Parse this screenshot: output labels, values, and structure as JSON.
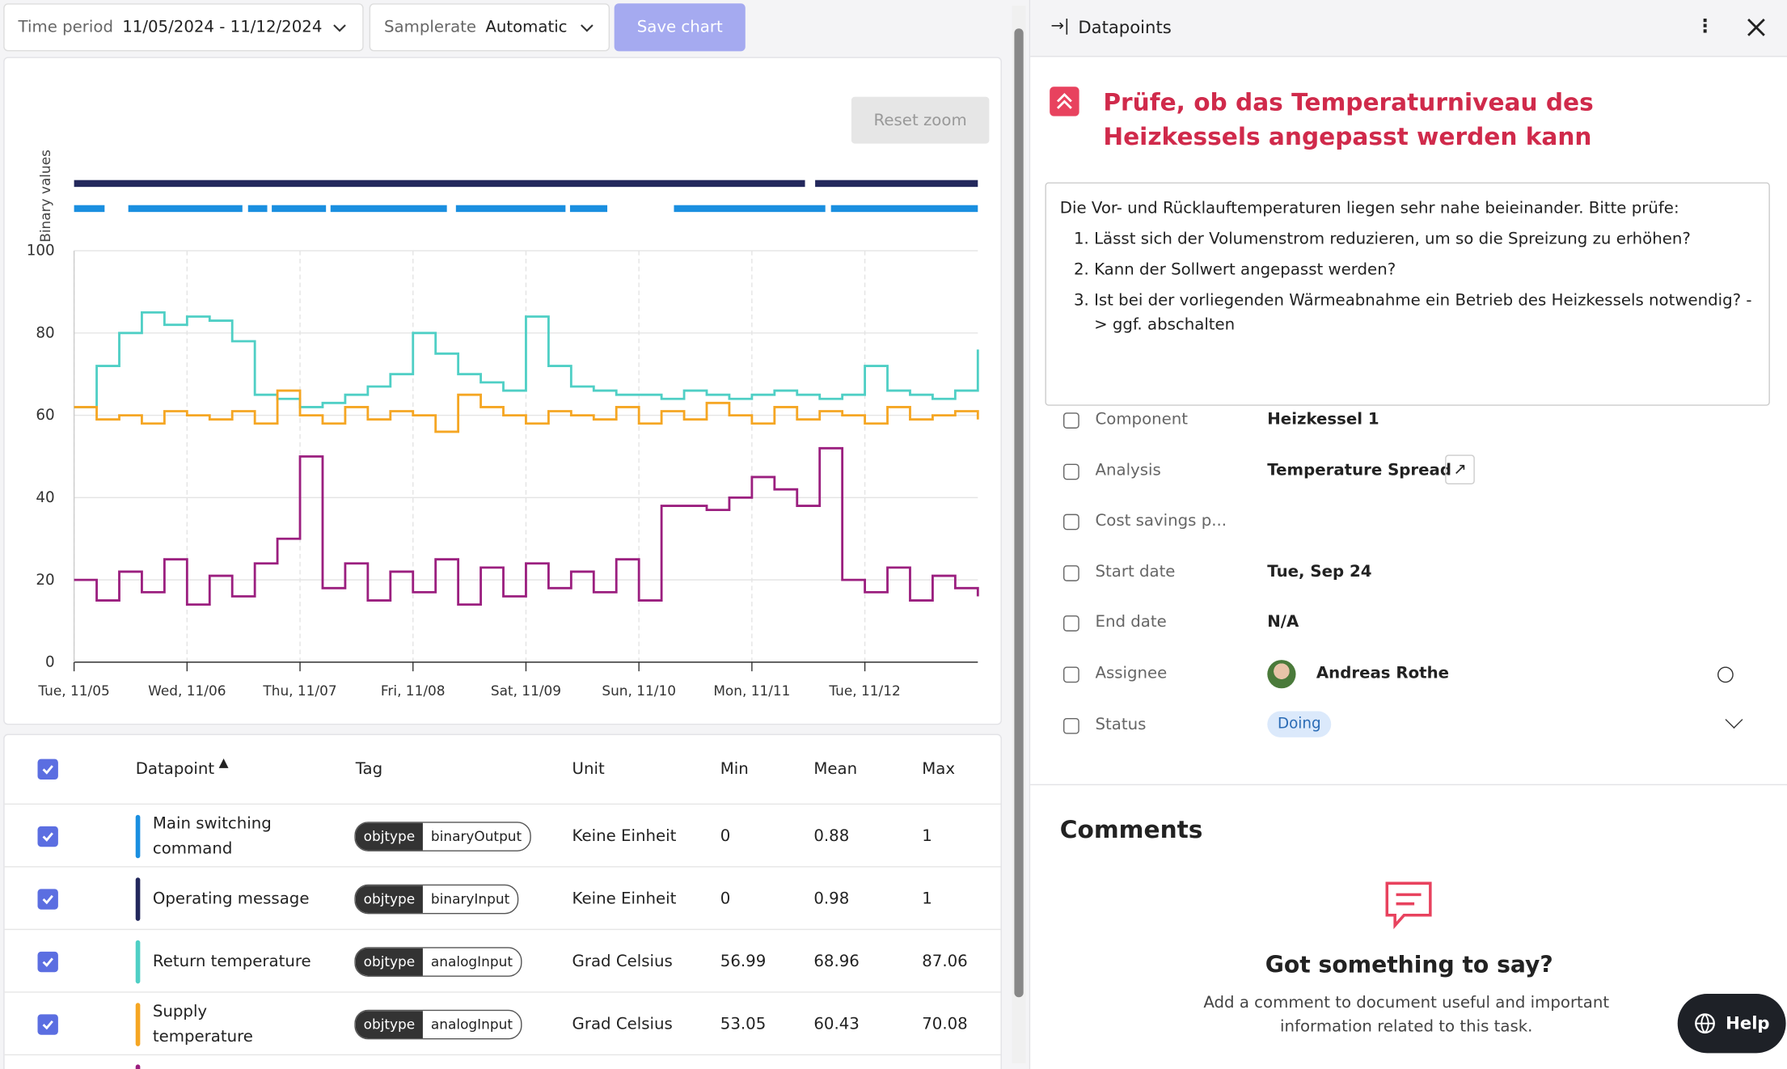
{
  "toolbar": {
    "time_label": "Time period",
    "time_value": "11/05/2024 - 11/12/2024",
    "rate_label": "Samplerate",
    "rate_value": "Automatic",
    "save": "Save chart"
  },
  "chart_data": {
    "type": "line",
    "reset_zoom": "Reset zoom",
    "binary_label": "Binary values",
    "xlim": [
      0,
      8
    ],
    "xticks": [
      {
        "value": 0,
        "label": "Tue, 11/05"
      },
      {
        "value": 1,
        "label": "Wed, 11/06"
      },
      {
        "value": 2,
        "label": "Thu, 11/07"
      },
      {
        "value": 3,
        "label": "Fri, 11/08"
      },
      {
        "value": 4,
        "label": "Sat, 11/09"
      },
      {
        "value": 5,
        "label": "Sun, 11/10"
      },
      {
        "value": 6,
        "label": "Mon, 11/11"
      },
      {
        "value": 7,
        "label": "Tue, 11/12"
      }
    ],
    "ylim": [
      0,
      100
    ],
    "yticks": [
      0,
      20,
      40,
      60,
      80,
      100
    ],
    "grid": true,
    "x": [
      0,
      0.2,
      0.4,
      0.6,
      0.8,
      1,
      1.2,
      1.4,
      1.6,
      1.8,
      2,
      2.2,
      2.4,
      2.6,
      2.8,
      3,
      3.2,
      3.4,
      3.6,
      3.8,
      4,
      4.2,
      4.4,
      4.6,
      4.8,
      5,
      5.2,
      5.4,
      5.6,
      5.8,
      6,
      6.2,
      6.4,
      6.6,
      6.8,
      7,
      7.2,
      7.4,
      7.6,
      7.8,
      8
    ],
    "series": [
      {
        "name": "Main switching command",
        "color": "#1a8fe0",
        "binary": true,
        "segments": [
          [
            0,
            0.27
          ],
          [
            0.48,
            1.49
          ],
          [
            1.54,
            1.71
          ],
          [
            1.75,
            2.23
          ],
          [
            2.27,
            3.3
          ],
          [
            3.38,
            4.35
          ],
          [
            4.39,
            4.72
          ],
          [
            5.31,
            6.65
          ],
          [
            6.7,
            8
          ]
        ]
      },
      {
        "name": "Operating message",
        "color": "#23285c",
        "binary": true,
        "segments": [
          [
            0,
            6.47
          ],
          [
            6.56,
            8
          ]
        ]
      },
      {
        "name": "Return temperature",
        "color": "#4fcfc5",
        "values": [
          62,
          72,
          80,
          85,
          82,
          84,
          83,
          78,
          65,
          64,
          62,
          63,
          65,
          67,
          70,
          80,
          75,
          70,
          68,
          66,
          84,
          72,
          67,
          66,
          65,
          65,
          64,
          66,
          65,
          64,
          65,
          66,
          65,
          64,
          65,
          72,
          66,
          65,
          64,
          66,
          76
        ]
      },
      {
        "name": "Supply temperature",
        "color": "#f5a623",
        "values": [
          62,
          59,
          60,
          58,
          61,
          60,
          59,
          61,
          58,
          66,
          60,
          58,
          62,
          59,
          61,
          60,
          56,
          65,
          62,
          60,
          58,
          61,
          60,
          59,
          62,
          58,
          61,
          59,
          63,
          60,
          58,
          62,
          59,
          61,
          60,
          58,
          62,
          59,
          60,
          61,
          59
        ]
      },
      {
        "color": "#9b1f7f",
        "values": [
          20,
          15,
          22,
          17,
          25,
          14,
          21,
          16,
          24,
          30,
          50,
          18,
          24,
          15,
          22,
          17,
          25,
          14,
          23,
          16,
          24,
          18,
          22,
          17,
          25,
          15,
          38,
          38,
          37,
          40,
          45,
          42,
          38,
          52,
          20,
          17,
          23,
          15,
          21,
          18,
          16
        ]
      }
    ]
  },
  "table": {
    "headers": [
      "Datapoint",
      "Tag",
      "Unit",
      "Min",
      "Mean",
      "Max"
    ],
    "rows": [
      {
        "tag_key": "objtype",
        "tag_value": "binaryOutput",
        "unit": "Keine Einheit",
        "min": 0,
        "mean": 0.88,
        "max": 1
      },
      {
        "tag_key": "objtype",
        "tag_value": "binaryInput",
        "unit": "Keine Einheit",
        "min": 0,
        "mean": 0.98,
        "max": 1
      },
      {
        "tag_key": "objtype",
        "tag_value": "analogInput",
        "unit": "Grad Celsius",
        "min": 56.99,
        "mean": 68.96,
        "max": 87.06
      },
      {
        "tag_key": "objtype",
        "tag_value": "analogInput",
        "unit": "Grad Celsius",
        "min": 53.05,
        "mean": 60.43,
        "max": 70.08
      }
    ]
  },
  "panel": {
    "header": "Datapoints",
    "title": "Prüfe, ob das Temperaturniveau des Heizkessels angepasst werden kann",
    "intro": "Die Vor- und Rücklauftemperaturen liegen sehr nahe beieinander. Bitte prüfe:",
    "items": [
      "Lässt sich der Volumenstrom reduzieren, um so die Spreizung zu erhöhen?",
      "Kann der Sollwert angepasst werden?",
      "Ist bei der vorliegenden Wärmeabnahme ein Betrieb des Heizkessels notwendig? -> ggf. abschalten"
    ],
    "props": [
      {
        "label": "Component",
        "value": "Heizkessel 1"
      },
      {
        "label": "Analysis",
        "value": "Temperature Spread"
      },
      {
        "label": "Cost savings p..."
      },
      {
        "label": "Start date",
        "value": "Tue, Sep 24"
      },
      {
        "label": "End date",
        "value": "N/A"
      },
      {
        "label": "Assignee",
        "value": "Andreas Rothe"
      },
      {
        "label": "Status",
        "value": "Doing"
      }
    ]
  },
  "comments": {
    "title": "Comments",
    "heading": "Got something to say?",
    "text": "Add a comment to document useful and important information related to this task.",
    "help": "Help"
  }
}
